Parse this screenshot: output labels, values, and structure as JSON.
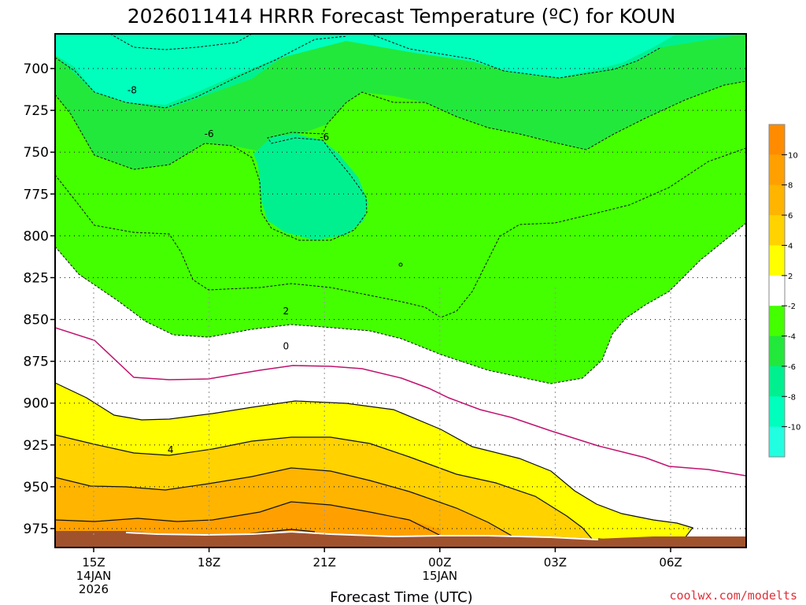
{
  "chart_data": {
    "type": "contour",
    "title": "2026011414 HRRR Forecast Temperature (ºC) for KOUN",
    "xlabel": "Forecast Time (UTC)",
    "credit": "coolwx.com/modelts",
    "y_axis": {
      "direction": "inverted",
      "ticks": [
        "700",
        "725",
        "750",
        "775",
        "800",
        "825",
        "850",
        "875",
        "900",
        "925",
        "950",
        "975"
      ]
    },
    "x_axis": {
      "ticks": [
        {
          "label": "15Z",
          "sub": [
            "14JAN",
            "2026"
          ]
        },
        {
          "label": "18Z",
          "sub": []
        },
        {
          "label": "21Z",
          "sub": []
        },
        {
          "label": "00Z",
          "sub": [
            "15JAN"
          ]
        },
        {
          "label": "03Z",
          "sub": []
        },
        {
          "label": "06Z",
          "sub": []
        }
      ]
    },
    "contour_labels": [
      {
        "text": "-8",
        "x": "16Z",
        "p": 713
      },
      {
        "text": "-6",
        "x": "18Z",
        "p": 739
      },
      {
        "text": "-6",
        "x": "21Z",
        "p": 741
      },
      {
        "text": "2",
        "x": "20Z",
        "p": 845
      },
      {
        "text": "0",
        "x": "20Z",
        "p": 866
      },
      {
        "text": "4",
        "x": "17Z",
        "p": 928
      }
    ],
    "colorbar": {
      "ticks": [
        "10",
        "8",
        "6",
        "4",
        "2",
        "-2",
        "-4",
        "-6",
        "-8",
        "-10"
      ],
      "bands": [
        {
          "range": "> 10",
          "color": "#ff8c00"
        },
        {
          "range": "8 to 10",
          "color": "#ffa000"
        },
        {
          "range": "6 to 8",
          "color": "#ffb400"
        },
        {
          "range": "4 to 6",
          "color": "#ffd200"
        },
        {
          "range": "2 to 4",
          "color": "#ffff00"
        },
        {
          "range": "-2 to 2",
          "color": "#ffffff"
        },
        {
          "range": "-4 to -2",
          "color": "#44ff00"
        },
        {
          "range": "-6 to -4",
          "color": "#22e83c"
        },
        {
          "range": "-8 to -6",
          "color": "#00f090"
        },
        {
          "range": "-10 to -8",
          "color": "#00ffbc"
        },
        {
          "range": "< -10",
          "color": "#22ffe0"
        }
      ]
    },
    "ground_color": "#a0522d"
  }
}
